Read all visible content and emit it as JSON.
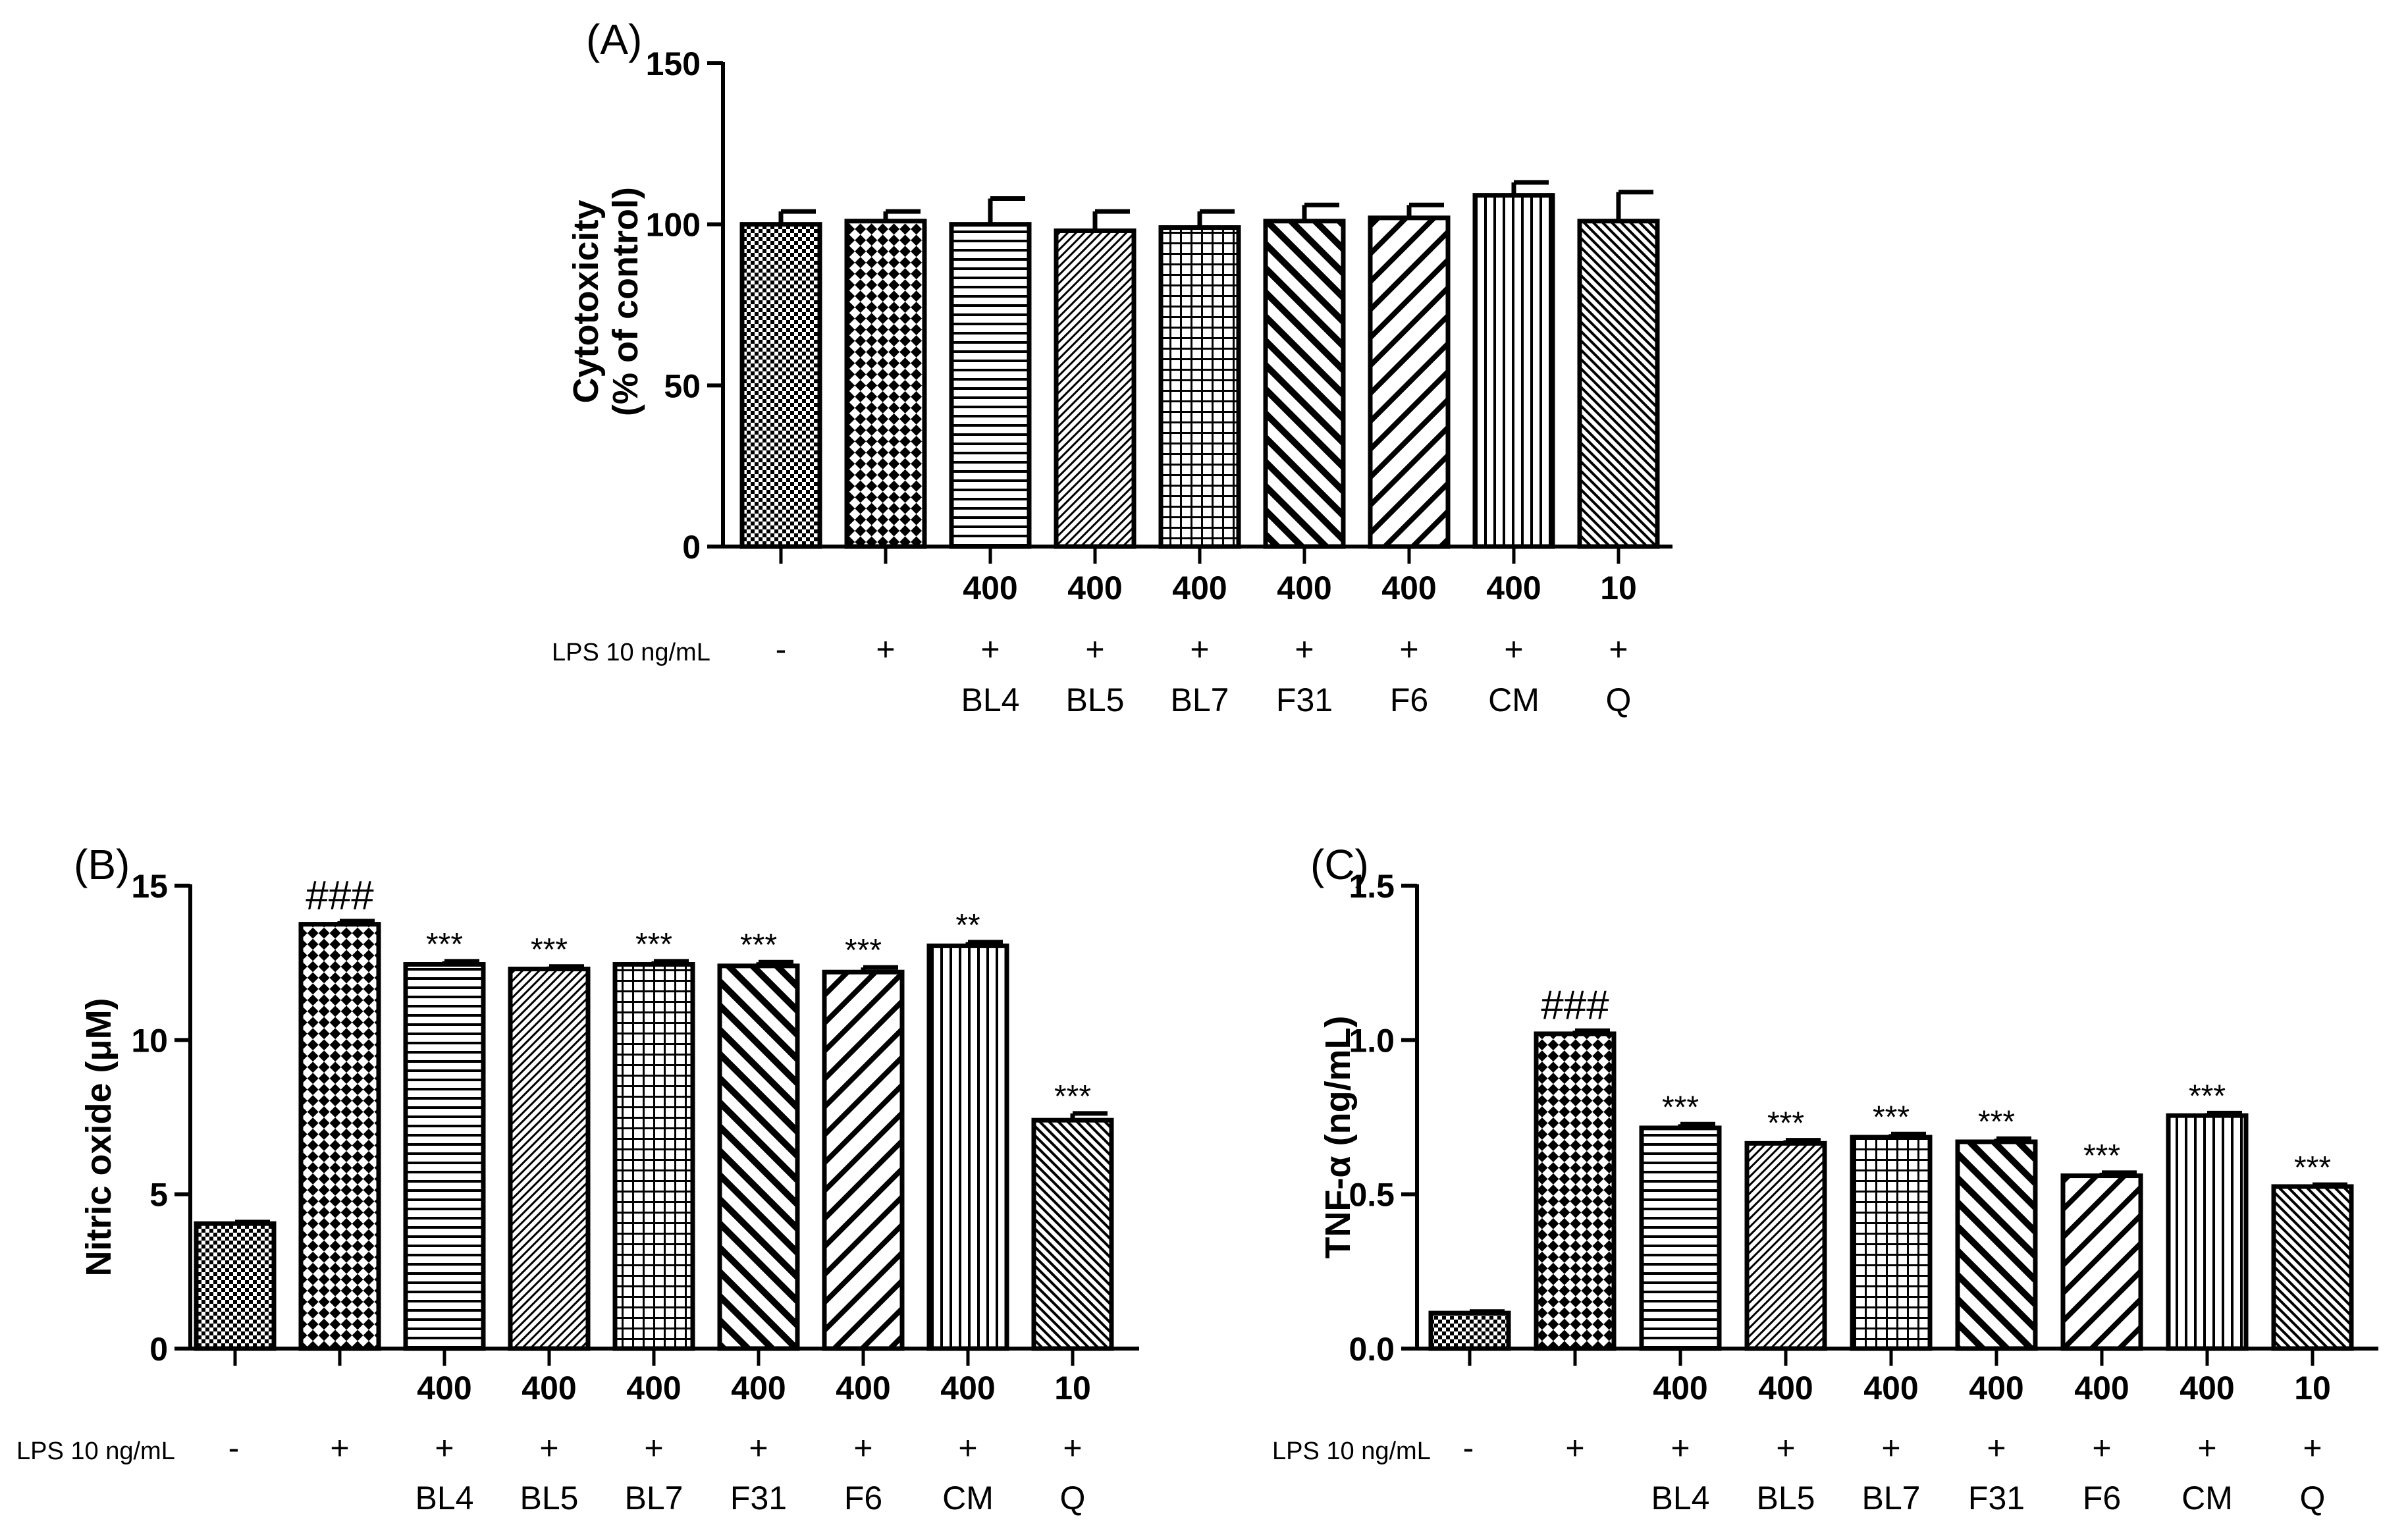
{
  "colors": {
    "ink": "#000000",
    "paper": "#ffffff"
  },
  "table_labels": {
    "lps": "LPS 10 ng/mL"
  },
  "chart_data": [
    {
      "type": "bar",
      "panel": "(A)",
      "ylabel_line1": "Cytotoxicity",
      "ylabel_line2": "(% of control)",
      "ylim": [
        0,
        150
      ],
      "yticks": [
        "0",
        "50",
        "100",
        "150"
      ],
      "yticks_values": [
        0,
        50,
        100,
        150
      ],
      "categories": [
        "",
        "",
        "BL4",
        "BL5",
        "BL7",
        "F31",
        "F6",
        "CM",
        "Q"
      ],
      "concentrations": [
        "",
        "",
        "400",
        "400",
        "400",
        "400",
        "400",
        "400",
        "10"
      ],
      "lps": [
        "-",
        "+",
        "+",
        "+",
        "+",
        "+",
        "+",
        "+",
        "+"
      ],
      "patterns": [
        "small-check",
        "big-check",
        "hlines",
        "fine-diag",
        "grid",
        "back-diag",
        "fwd-diag",
        "vlines",
        "fine-back-diag"
      ],
      "values": [
        100,
        101,
        100,
        98,
        99,
        101,
        102,
        109,
        101
      ],
      "errors": [
        4,
        3,
        8,
        6,
        5,
        5,
        4,
        4,
        9
      ],
      "significance": [
        "",
        "",
        "",
        "",
        "",
        "",
        "",
        "",
        ""
      ]
    },
    {
      "type": "bar",
      "panel": "(B)",
      "ylabel_line1": "Nitric oxide (μM)",
      "ylim": [
        0,
        15
      ],
      "yticks": [
        "0",
        "5",
        "10",
        "15"
      ],
      "yticks_values": [
        0,
        5,
        10,
        15
      ],
      "categories": [
        "",
        "",
        "BL4",
        "BL5",
        "BL7",
        "F31",
        "F6",
        "CM",
        "Q"
      ],
      "concentrations": [
        "",
        "",
        "400",
        "400",
        "400",
        "400",
        "400",
        "400",
        "10"
      ],
      "lps": [
        "-",
        "+",
        "+",
        "+",
        "+",
        "+",
        "+",
        "+",
        "+"
      ],
      "patterns": [
        "small-check",
        "big-check",
        "hlines",
        "fine-diag",
        "grid",
        "back-diag",
        "fwd-diag",
        "vlines",
        "fine-back-diag"
      ],
      "values": [
        4.05,
        13.75,
        12.45,
        12.3,
        12.45,
        12.4,
        12.2,
        13.05,
        7.4
      ],
      "errors": [
        0.05,
        0.1,
        0.1,
        0.08,
        0.1,
        0.12,
        0.15,
        0.12,
        0.22
      ],
      "significance": [
        "",
        "###",
        "***",
        "***",
        "***",
        "***",
        "***",
        "**",
        "***"
      ]
    },
    {
      "type": "bar",
      "panel": "(C)",
      "ylabel_line1": "TNF-α (ng/mL)",
      "ylim": [
        0,
        1.5
      ],
      "yticks": [
        "0.0",
        "0.5",
        "1.0",
        "1.5"
      ],
      "yticks_values": [
        0,
        0.5,
        1.0,
        1.5
      ],
      "categories": [
        "",
        "",
        "BL4",
        "BL5",
        "BL7",
        "F31",
        "F6",
        "CM",
        "Q"
      ],
      "concentrations": [
        "",
        "",
        "400",
        "400",
        "400",
        "400",
        "400",
        "400",
        "10"
      ],
      "lps": [
        "-",
        "+",
        "+",
        "+",
        "+",
        "+",
        "+",
        "+",
        "+"
      ],
      "patterns": [
        "small-check",
        "big-check",
        "hlines",
        "fine-diag",
        "grid",
        "back-diag",
        "fwd-diag",
        "vlines",
        "fine-back-diag"
      ],
      "values": [
        0.115,
        1.02,
        0.715,
        0.665,
        0.685,
        0.67,
        0.56,
        0.755,
        0.525
      ],
      "errors": [
        0.005,
        0.01,
        0.012,
        0.01,
        0.01,
        0.01,
        0.01,
        0.008,
        0.006
      ],
      "significance": [
        "",
        "###",
        "***",
        "***",
        "***",
        "***",
        "***",
        "***",
        "***"
      ]
    }
  ]
}
